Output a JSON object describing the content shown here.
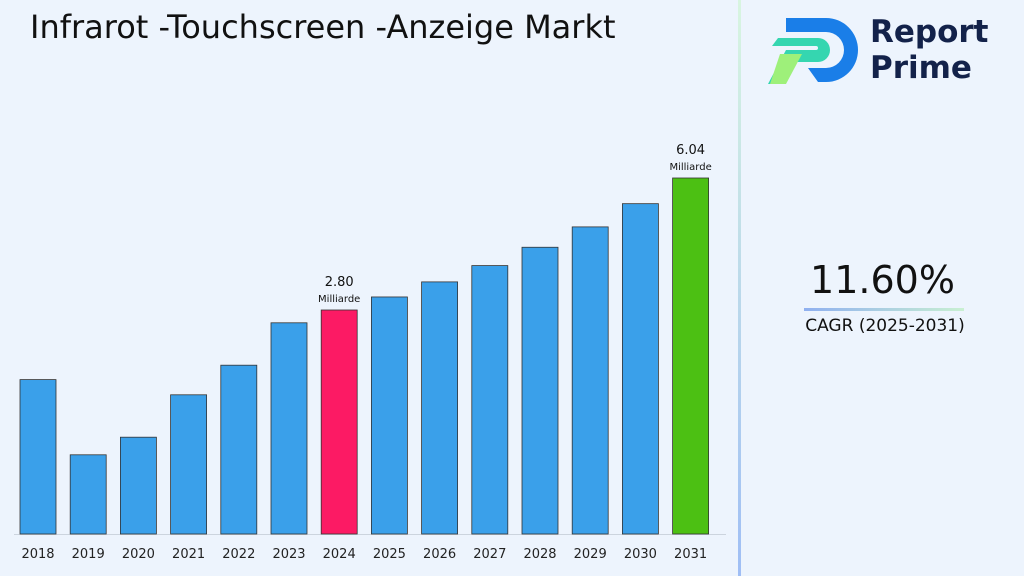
{
  "title": "Infrarot -Touchscreen -Anzeige Markt",
  "logo": {
    "line1": "Report",
    "line2": "Prime"
  },
  "cagr": {
    "value": "11.60%",
    "label": "CAGR (2025-2031)"
  },
  "colors": {
    "bar": "#3aa0ea",
    "highlight_2024": "#fc1a64",
    "highlight_2031": "#4cc013",
    "background": "#edf4fd"
  },
  "chart_data": {
    "type": "bar",
    "title": "Infrarot -Touchscreen -Anzeige Markt",
    "categories": [
      "2018",
      "2019",
      "2020",
      "2021",
      "2022",
      "2023",
      "2024",
      "2025",
      "2026",
      "2027",
      "2028",
      "2029",
      "2030",
      "2031"
    ],
    "values": [
      1.93,
      0.99,
      1.21,
      1.74,
      2.11,
      2.64,
      2.8,
      3.12,
      3.49,
      3.89,
      4.34,
      4.84,
      5.41,
      6.04
    ],
    "annotations": [
      {
        "category": "2024",
        "value": "2.80",
        "unit": "Milliarde"
      },
      {
        "category": "2031",
        "value": "6.04",
        "unit": "Milliarde"
      }
    ],
    "xlabel": "",
    "ylabel": "",
    "grid": false,
    "legend": "none"
  }
}
